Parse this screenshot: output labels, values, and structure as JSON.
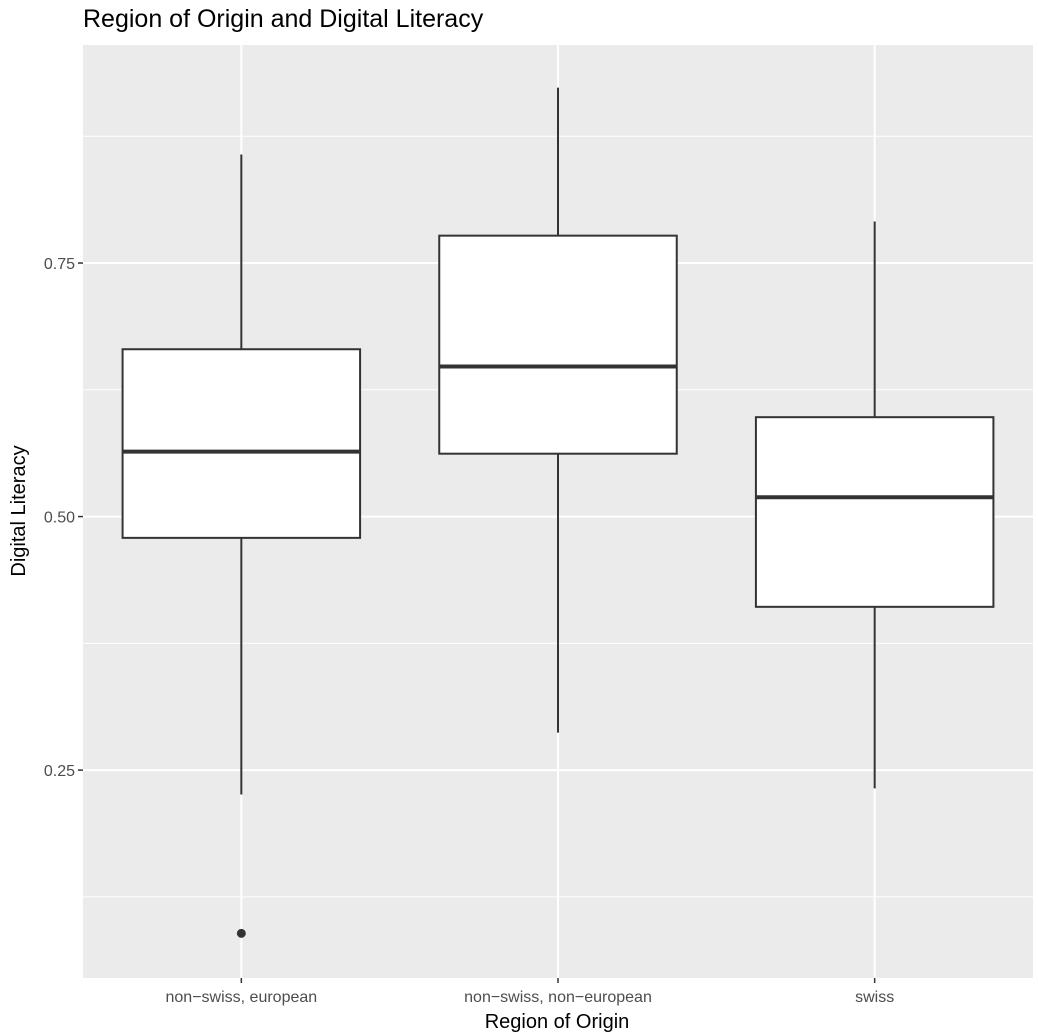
{
  "chart_data": {
    "type": "boxplot",
    "title": "Region of Origin and Digital Literacy",
    "xlabel": "Region of Origin",
    "ylabel": "Digital Literacy",
    "categories": [
      "non−swiss, european",
      "non−swiss, non−european",
      "swiss"
    ],
    "boxes": [
      {
        "category": "non−swiss, european",
        "whisker_low": 0.226,
        "q1": 0.479,
        "median": 0.564,
        "q3": 0.665,
        "whisker_high": 0.857,
        "outliers": [
          0.089
        ]
      },
      {
        "category": "non−swiss, non−european",
        "whisker_low": 0.287,
        "q1": 0.562,
        "median": 0.648,
        "q3": 0.777,
        "whisker_high": 0.923,
        "outliers": []
      },
      {
        "category": "swiss",
        "whisker_low": 0.232,
        "q1": 0.411,
        "median": 0.519,
        "q3": 0.598,
        "whisker_high": 0.791,
        "outliers": []
      }
    ],
    "y_ticks": [
      0.25,
      0.5,
      0.75
    ],
    "y_tick_labels": [
      "0.25",
      "0.50",
      "0.75"
    ],
    "ylim": [
      0.045,
      0.965
    ],
    "grid": true,
    "legend": "none",
    "colors": {
      "panel": "#ebebeb",
      "gridline": "#ffffff",
      "box_fill": "#ffffff",
      "box_stroke": "#333333",
      "tick_text": "#4d4d4d"
    }
  }
}
